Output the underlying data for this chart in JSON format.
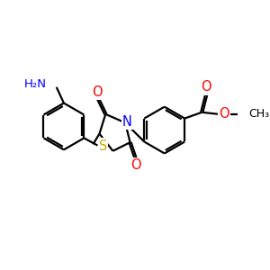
{
  "bg_color": "#ffffff",
  "atom_colors": {
    "N": "#0000ff",
    "O": "#ff0000",
    "S": "#ccaa00",
    "C": "#000000"
  },
  "bond_color": "#000000",
  "lw": 1.6,
  "figsize": [
    3.0,
    3.0
  ],
  "dpi": 100,
  "xlim": [
    0,
    10
  ],
  "ylim": [
    0,
    10
  ]
}
